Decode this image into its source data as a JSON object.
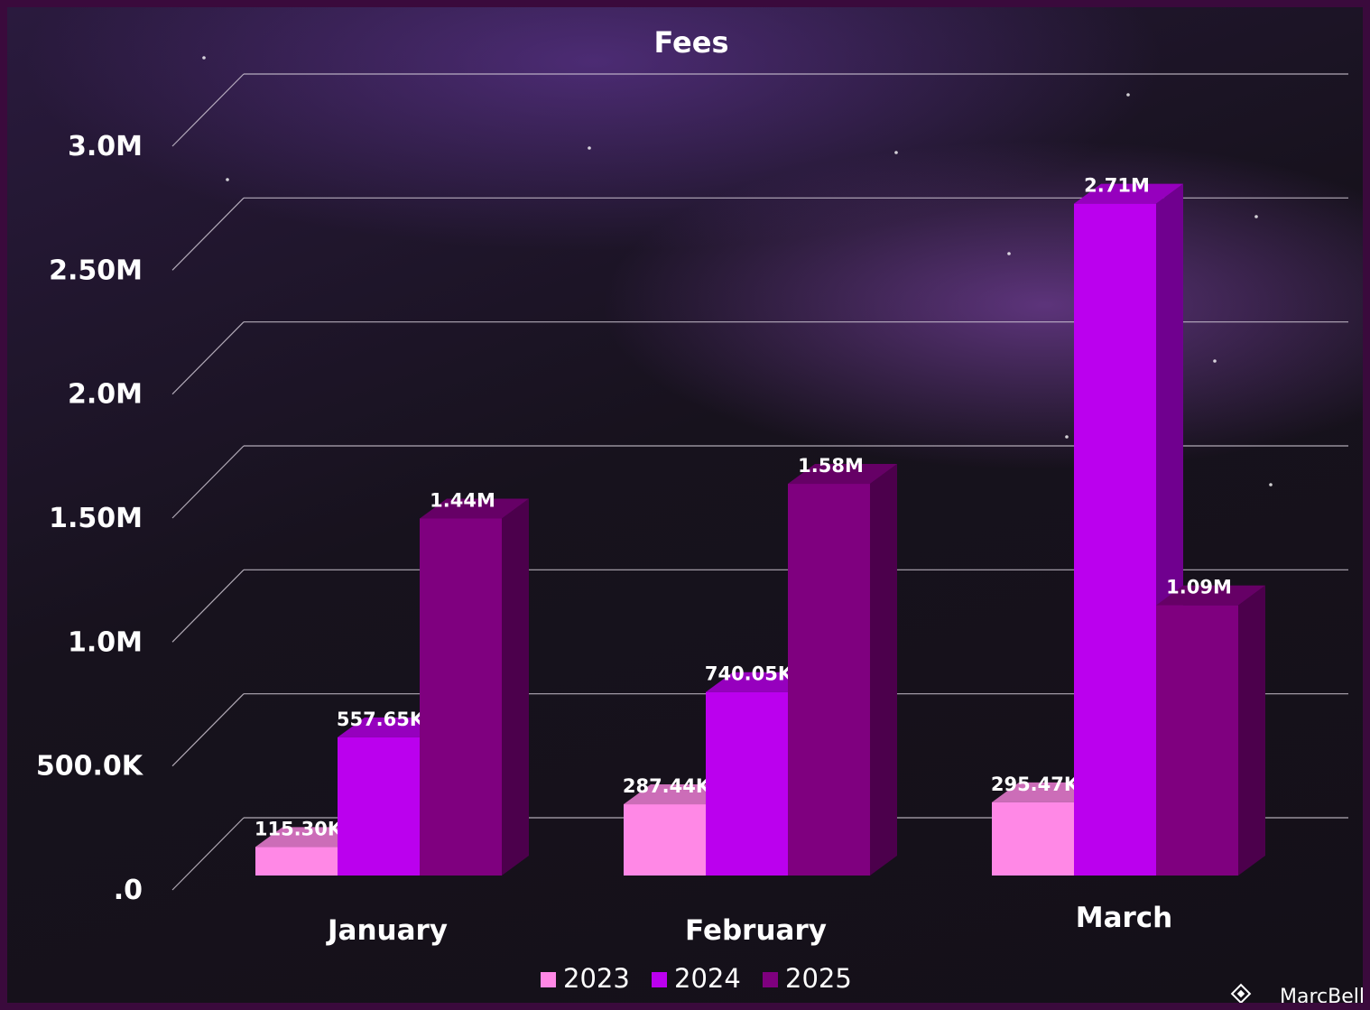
{
  "chart_data": {
    "type": "bar",
    "title": "Fees",
    "categories": [
      "January",
      "February",
      "March"
    ],
    "series": [
      {
        "name": "2023",
        "values": [
          115300,
          287440,
          295470
        ],
        "labels": [
          "115.30K",
          "287.44K",
          "295.47K"
        ],
        "color": "#ff88e6"
      },
      {
        "name": "2024",
        "values": [
          557650,
          740050,
          2710000
        ],
        "labels": [
          "557.65K",
          "740.05K",
          "2.71M"
        ],
        "color": "#bb00ee"
      },
      {
        "name": "2025",
        "values": [
          1440000,
          1580000,
          1090000
        ],
        "labels": [
          "1.44M",
          "1.58M",
          "1.09M"
        ],
        "color": "#7f007f"
      }
    ],
    "yticks": [
      {
        "value": 0,
        "label": ".0"
      },
      {
        "value": 500000,
        "label": "500.0K"
      },
      {
        "value": 1000000,
        "label": "1.0M"
      },
      {
        "value": 1500000,
        "label": "1.50M"
      },
      {
        "value": 2000000,
        "label": "2.0M"
      },
      {
        "value": 2500000,
        "label": "2.50M"
      },
      {
        "value": 3000000,
        "label": "3.0M"
      }
    ],
    "ylim": [
      0,
      3000000
    ],
    "xlabel": "",
    "ylabel": "",
    "grid": true,
    "legend_position": "bottom-center",
    "style": "3d-columns"
  },
  "watermark": "MarcBell"
}
